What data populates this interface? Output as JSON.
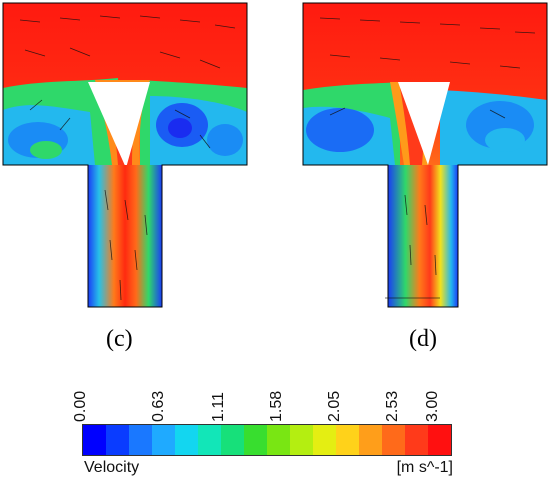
{
  "panels": [
    {
      "id": "c",
      "label": "(c)"
    },
    {
      "id": "d",
      "label": "(d)"
    }
  ],
  "colorbar": {
    "title": "Velocity",
    "unit": "[m s^-1]",
    "ticks": [
      "0.00",
      "0.63",
      "1.11",
      "1.58",
      "2.05",
      "2.53",
      "3.00"
    ],
    "colors": [
      "#0000ff",
      "#0a3cff",
      "#1a78ff",
      "#1faaff",
      "#13d6f0",
      "#12e6b8",
      "#17e07a",
      "#38de2f",
      "#79e613",
      "#b4ee11",
      "#e4ee12",
      "#ffd21a",
      "#ff9e1a",
      "#ff6a1a",
      "#ff3a1a",
      "#ff1010"
    ]
  },
  "colors": {
    "blue": "#1a2cf0",
    "cyan": "#23b8ee",
    "green": "#2fd86a",
    "yellow": "#f3e21c",
    "orange": "#ff8a1a",
    "red": "#ff2a10"
  }
}
